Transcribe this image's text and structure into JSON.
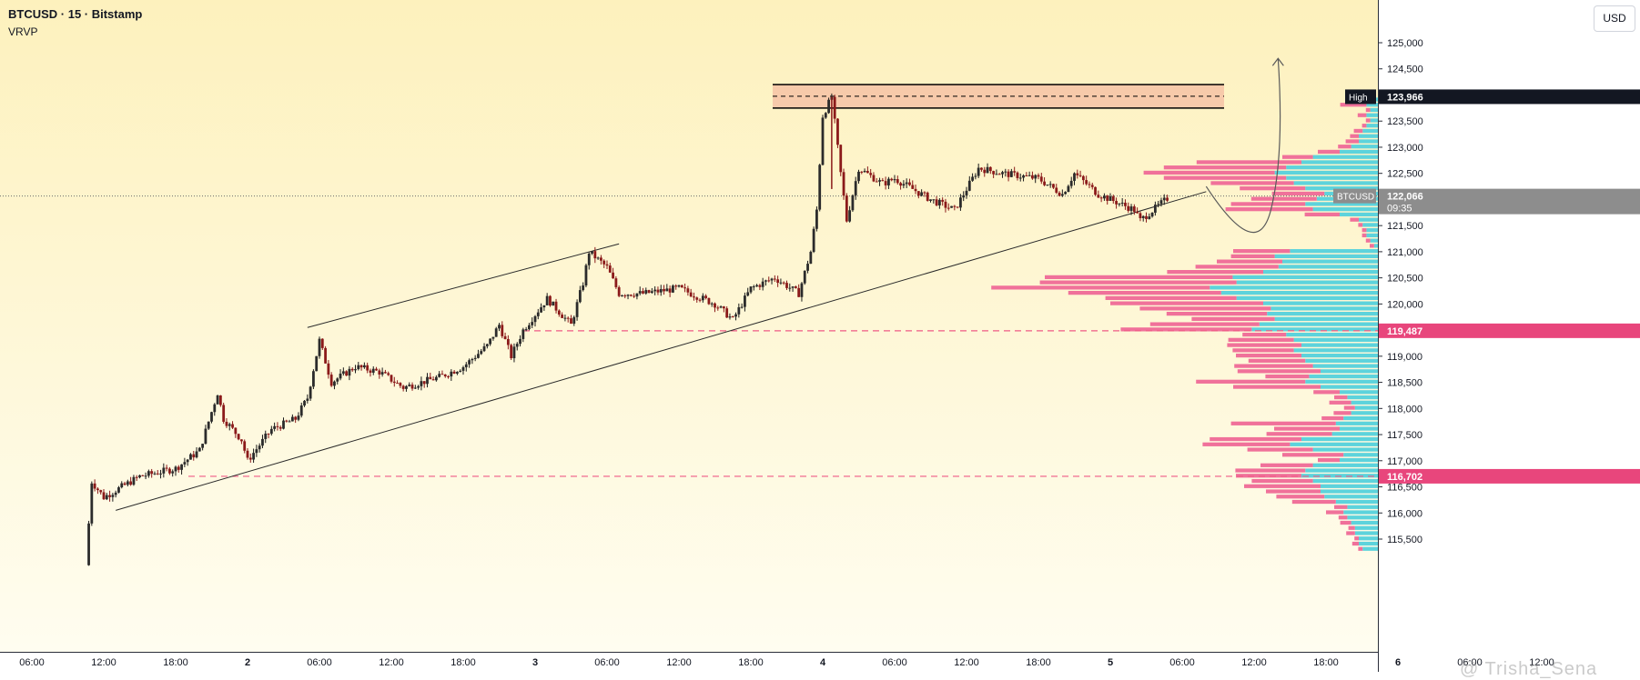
{
  "header": {
    "symbol_line": "BTCUSD · 15 · Bitstamp",
    "indicator": "VRVP"
  },
  "currency_button": "USD",
  "watermark": "@ Trisha_Sena",
  "colors": {
    "background_top": "#fdf1bd",
    "background_bottom": "#fffdf0",
    "candle_up": "#1a1a1a",
    "candle_down": "#8b1a1a",
    "volume_up": "#5dd3dc",
    "volume_down": "#f0719a",
    "volume_up_va": "#5dd3dc",
    "volume_down_va": "#f58db0",
    "dashed_line": "#ef5b86",
    "resistance_fill": "#f6c2a6",
    "high_badge": "#131722",
    "current_badge": "#8d8d8d",
    "level_badge": "#e8467c"
  },
  "chart_data": {
    "type": "candlestick",
    "title": "BTCUSD · 15 · Bitstamp",
    "y_axis": {
      "min": 115000,
      "max": 125500,
      "ticks": [
        125000,
        124500,
        124000,
        123500,
        123000,
        122500,
        122000,
        121500,
        121000,
        120500,
        120000,
        119500,
        119000,
        118500,
        118000,
        117500,
        117000,
        116500,
        116000,
        115500
      ],
      "tick_labels": [
        "125,000",
        "124,500",
        "124,000",
        "123,500",
        "123,000",
        "122,500",
        "122,000",
        "121,500",
        "121,000",
        "120,500",
        "120,000",
        "119,500",
        "119,000",
        "118,500",
        "118,000",
        "117,500",
        "117,000",
        "116,500",
        "116,000",
        "115,500"
      ]
    },
    "x_axis": {
      "tick_labels": [
        "06:00",
        "12:00",
        "18:00",
        "2",
        "06:00",
        "12:00",
        "18:00",
        "3",
        "06:00",
        "12:00",
        "18:00",
        "4",
        "06:00",
        "12:00",
        "18:00",
        "5",
        "06:00",
        "12:00",
        "18:00",
        "6",
        "06:00",
        "12:00"
      ],
      "bold_labels": [
        "2",
        "3",
        "4",
        "5",
        "6"
      ],
      "start": "Oct 1 06:00",
      "end": "Oct 6 12:00",
      "step_hours": 6
    },
    "ohlc_keypoints": [
      [
        "1 10:30",
        115000
      ],
      [
        "1 11:00",
        116600
      ],
      [
        "1 12:00",
        116300
      ],
      [
        "1 15:00",
        116700
      ],
      [
        "1 18:00",
        116850
      ],
      [
        "1 20:00",
        117200
      ],
      [
        "1 21:30",
        118300
      ],
      [
        "1 22:00",
        117800
      ],
      [
        "1 23:30",
        117400
      ],
      [
        "2 00:00",
        117000
      ],
      [
        "2 01:00",
        117300
      ],
      [
        "2 02:00",
        117600
      ],
      [
        "2 04:00",
        117800
      ],
      [
        "2 05:00",
        118200
      ],
      [
        "2 06:00",
        119300
      ],
      [
        "2 07:00",
        118500
      ],
      [
        "2 09:00",
        118800
      ],
      [
        "2 11:00",
        118700
      ],
      [
        "2 13:00",
        118400
      ],
      [
        "2 16:00",
        118600
      ],
      [
        "2 18:00",
        118800
      ],
      [
        "2 20:00",
        119200
      ],
      [
        "2 21:00",
        119600
      ],
      [
        "2 22:00",
        119000
      ],
      [
        "2 23:00",
        119500
      ],
      [
        "3 01:00",
        120100
      ],
      [
        "3 03:00",
        119600
      ],
      [
        "3 04:00",
        120400
      ],
      [
        "3 04:30",
        121000
      ],
      [
        "3 06:00",
        120700
      ],
      [
        "3 07:00",
        120200
      ],
      [
        "3 09:00",
        120200
      ],
      [
        "3 12:00",
        120300
      ],
      [
        "3 15:00",
        120000
      ],
      [
        "3 16:30",
        119700
      ],
      [
        "3 18:00",
        120300
      ],
      [
        "3 20:00",
        120500
      ],
      [
        "3 22:00",
        120200
      ],
      [
        "3 23:00",
        121000
      ],
      [
        "3 23:30",
        121800
      ],
      [
        "4 00:00",
        123600
      ],
      [
        "4 00:45",
        123966
      ],
      [
        "4 01:30",
        122500
      ],
      [
        "4 02:00",
        121600
      ],
      [
        "4 03:00",
        122600
      ],
      [
        "4 05:00",
        122300
      ],
      [
        "4 06:00",
        122400
      ],
      [
        "4 09:00",
        122000
      ],
      [
        "4 11:00",
        121800
      ],
      [
        "4 13:00",
        122600
      ],
      [
        "4 15:00",
        122500
      ],
      [
        "4 18:00",
        122400
      ],
      [
        "4 20:00",
        122100
      ],
      [
        "4 21:00",
        122500
      ],
      [
        "4 23:00",
        122100
      ],
      [
        "5 02:00",
        121800
      ],
      [
        "5 02:30",
        121600
      ],
      [
        "5 05:00",
        122066
      ]
    ],
    "current_price": 122066,
    "current_label": "BTCUSD",
    "countdown": "09:35",
    "high": 123966,
    "high_label": "High",
    "levels": [
      119487,
      116702
    ],
    "level_labels": [
      "119,487",
      "116,702"
    ],
    "resistance_zone": {
      "from_price": 123750,
      "to_price": 124200,
      "mid_price": 123950,
      "start": "4 00:00",
      "end": "5 19:00"
    },
    "lines": [
      {
        "name": "lower-trendline",
        "from": [
          "1 13:00",
          116050
        ],
        "to": [
          "5 08:00",
          122150
        ]
      },
      {
        "name": "upper-channel-line",
        "from": [
          "2 05:00",
          119550
        ],
        "to": [
          "3 07:00",
          121150
        ]
      }
    ],
    "projection_arrow": {
      "from": [
        "5 08:00",
        122250
      ],
      "via": [
        "5 11:30",
        121800
      ],
      "to": [
        "5 14:00",
        124700
      ]
    },
    "volume_profile": {
      "price_step": 100,
      "min_price": 115300,
      "max_price": 123900,
      "max_volume": 1,
      "rows": [
        [
          115300,
          0.08,
          0.02
        ],
        [
          115400,
          0.1,
          0.03
        ],
        [
          115500,
          0.1,
          0.02
        ],
        [
          115600,
          0.12,
          0.04
        ],
        [
          115700,
          0.12,
          0.03
        ],
        [
          115800,
          0.14,
          0.05
        ],
        [
          115900,
          0.16,
          0.04
        ],
        [
          116000,
          0.18,
          0.08
        ],
        [
          116100,
          0.16,
          0.06
        ],
        [
          116200,
          0.22,
          0.2
        ],
        [
          116300,
          0.28,
          0.22
        ],
        [
          116400,
          0.3,
          0.25
        ],
        [
          116500,
          0.3,
          0.35
        ],
        [
          116600,
          0.34,
          0.28
        ],
        [
          116700,
          0.4,
          0.3
        ],
        [
          116800,
          0.38,
          0.32
        ],
        [
          116900,
          0.34,
          0.24
        ],
        [
          117000,
          0.2,
          0.1
        ],
        [
          117100,
          0.18,
          0.28
        ],
        [
          117200,
          0.34,
          0.3
        ],
        [
          117300,
          0.46,
          0.4
        ],
        [
          117400,
          0.4,
          0.42
        ],
        [
          117500,
          0.24,
          0.3
        ],
        [
          117600,
          0.2,
          0.3
        ],
        [
          117700,
          0.22,
          0.48
        ],
        [
          117800,
          0.18,
          0.1
        ],
        [
          117900,
          0.14,
          0.08
        ],
        [
          118000,
          0.12,
          0.05
        ],
        [
          118100,
          0.14,
          0.1
        ],
        [
          118200,
          0.16,
          0.06
        ],
        [
          118300,
          0.2,
          0.12
        ],
        [
          118400,
          0.3,
          0.4
        ],
        [
          118500,
          0.38,
          0.5
        ],
        [
          118600,
          0.36,
          0.2
        ],
        [
          118700,
          0.3,
          0.38
        ],
        [
          118800,
          0.34,
          0.36
        ],
        [
          118900,
          0.38,
          0.26
        ],
        [
          119000,
          0.4,
          0.3
        ],
        [
          119100,
          0.44,
          0.28
        ],
        [
          119200,
          0.4,
          0.34
        ],
        [
          119300,
          0.44,
          0.3
        ],
        [
          119400,
          0.48,
          0.2
        ],
        [
          119500,
          0.66,
          0.6
        ],
        [
          119600,
          0.62,
          0.5
        ],
        [
          119700,
          0.54,
          0.38
        ],
        [
          119800,
          0.58,
          0.46
        ],
        [
          119900,
          0.56,
          0.6
        ],
        [
          120000,
          0.6,
          0.7
        ],
        [
          120100,
          0.74,
          0.6
        ],
        [
          120200,
          0.82,
          0.7
        ],
        [
          120300,
          0.88,
          1.0
        ],
        [
          120400,
          0.74,
          0.9
        ],
        [
          120500,
          0.76,
          0.86
        ],
        [
          120600,
          0.6,
          0.44
        ],
        [
          120700,
          0.52,
          0.38
        ],
        [
          120800,
          0.5,
          0.3
        ],
        [
          120900,
          0.54,
          0.2
        ],
        [
          121000,
          0.46,
          0.26
        ],
        [
          121100,
          0.02,
          0.02
        ],
        [
          121200,
          0.04,
          0.02
        ],
        [
          121300,
          0.06,
          0.02
        ],
        [
          121400,
          0.06,
          0.02
        ],
        [
          121500,
          0.08,
          0.02
        ],
        [
          121600,
          0.1,
          0.04
        ],
        [
          121700,
          0.2,
          0.16
        ],
        [
          121800,
          0.34,
          0.4
        ],
        [
          121900,
          0.38,
          0.34
        ],
        [
          122000,
          0.32,
          0.3
        ],
        [
          122100,
          0.28,
          0.24
        ],
        [
          122200,
          0.38,
          0.3
        ],
        [
          122300,
          0.44,
          0.38
        ],
        [
          122400,
          0.48,
          0.56
        ],
        [
          122500,
          0.54,
          0.6
        ],
        [
          122600,
          0.48,
          0.56
        ],
        [
          122700,
          0.4,
          0.48
        ],
        [
          122800,
          0.34,
          0.14
        ],
        [
          122900,
          0.2,
          0.1
        ],
        [
          123000,
          0.14,
          0.06
        ],
        [
          123100,
          0.1,
          0.06
        ],
        [
          123200,
          0.1,
          0.04
        ],
        [
          123300,
          0.08,
          0.04
        ],
        [
          123400,
          0.06,
          0.02
        ],
        [
          123500,
          0.04,
          0.02
        ],
        [
          123600,
          0.06,
          0.04
        ],
        [
          123700,
          0.04,
          0.02
        ],
        [
          123800,
          0.06,
          0.12
        ],
        [
          123900,
          0.04,
          0.08
        ]
      ]
    }
  }
}
